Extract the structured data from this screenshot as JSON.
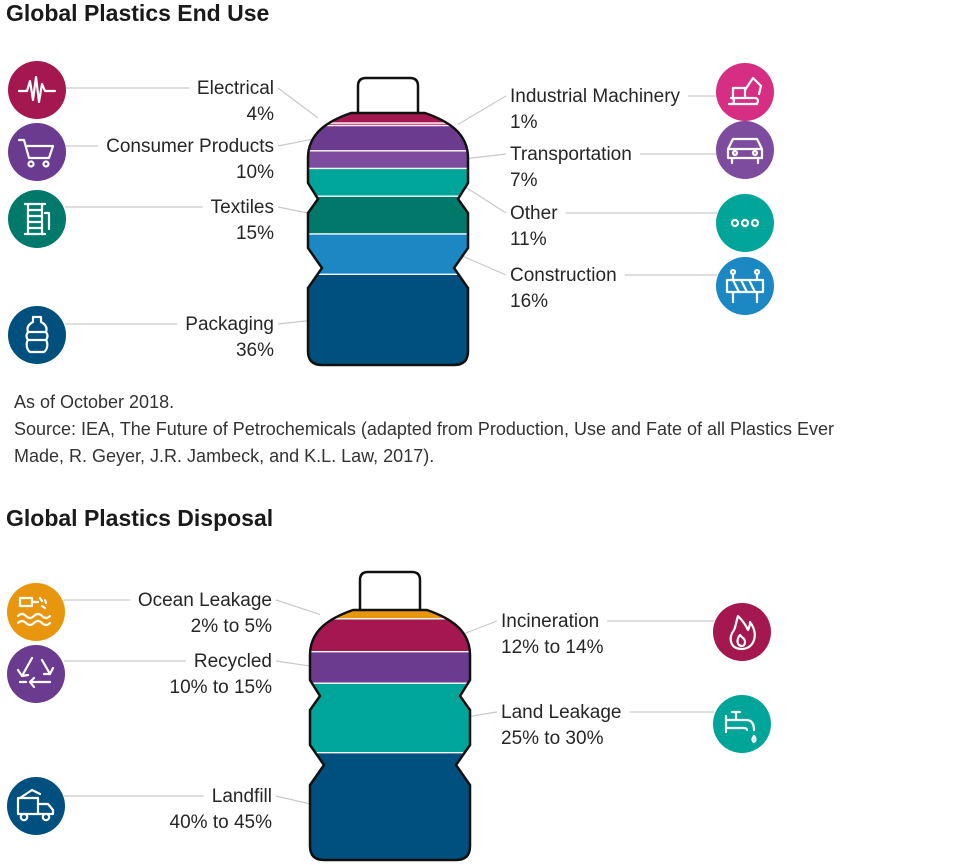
{
  "chart_data": [
    {
      "type": "bar",
      "title": "Global Plastics End Use",
      "unit": "%",
      "categories": [
        "Electrical",
        "Industrial Machinery",
        "Consumer Products",
        "Transportation",
        "Other",
        "Textiles",
        "Construction",
        "Packaging"
      ],
      "values": [
        4,
        1,
        10,
        7,
        11,
        15,
        16,
        36
      ],
      "value_labels": [
        "4%",
        "1%",
        "10%",
        "7%",
        "11%",
        "15%",
        "16%",
        "36%"
      ],
      "colors": [
        "#a5184f",
        "#d52e82",
        "#6a3b8f",
        "#7e4c9e",
        "#00a599",
        "#00796b",
        "#1b88c4",
        "#00507f"
      ],
      "icons": [
        "oscilloscope-icon",
        "excavator-icon",
        "shopping-cart-icon",
        "car-icon",
        "ellipsis-icon",
        "thread-spool-icon",
        "roadblock-icon",
        "bottle-icon"
      ]
    },
    {
      "type": "bar",
      "title": "Global Plastics Disposal",
      "unit": "%",
      "categories": [
        "Ocean Leakage",
        "Incineration",
        "Recycled",
        "Land Leakage",
        "Landfill"
      ],
      "ranges": [
        [
          2,
          5
        ],
        [
          12,
          14
        ],
        [
          10,
          15
        ],
        [
          25,
          30
        ],
        [
          40,
          45
        ]
      ],
      "value_labels": [
        "2% to 5%",
        "12% to 14%",
        "10% to 15%",
        "25% to 30%",
        "40% to 45%"
      ],
      "colors": [
        "#e8960e",
        "#a5184f",
        "#6a3b8f",
        "#00a599",
        "#00507f"
      ],
      "icons": [
        "waves-pipe-icon",
        "flame-icon",
        "recycle-icon",
        "faucet-drip-icon",
        "dump-truck-icon"
      ]
    }
  ],
  "notes": {
    "as_of": "As of October 2018.",
    "source_line1": "Source: IEA, The Future of Petrochemicals (adapted from Production, Use and Fate of all Plastics Ever",
    "source_line2": "Made, R. Geyer, J.R. Jambeck, and K.L. Law, 2017)."
  }
}
